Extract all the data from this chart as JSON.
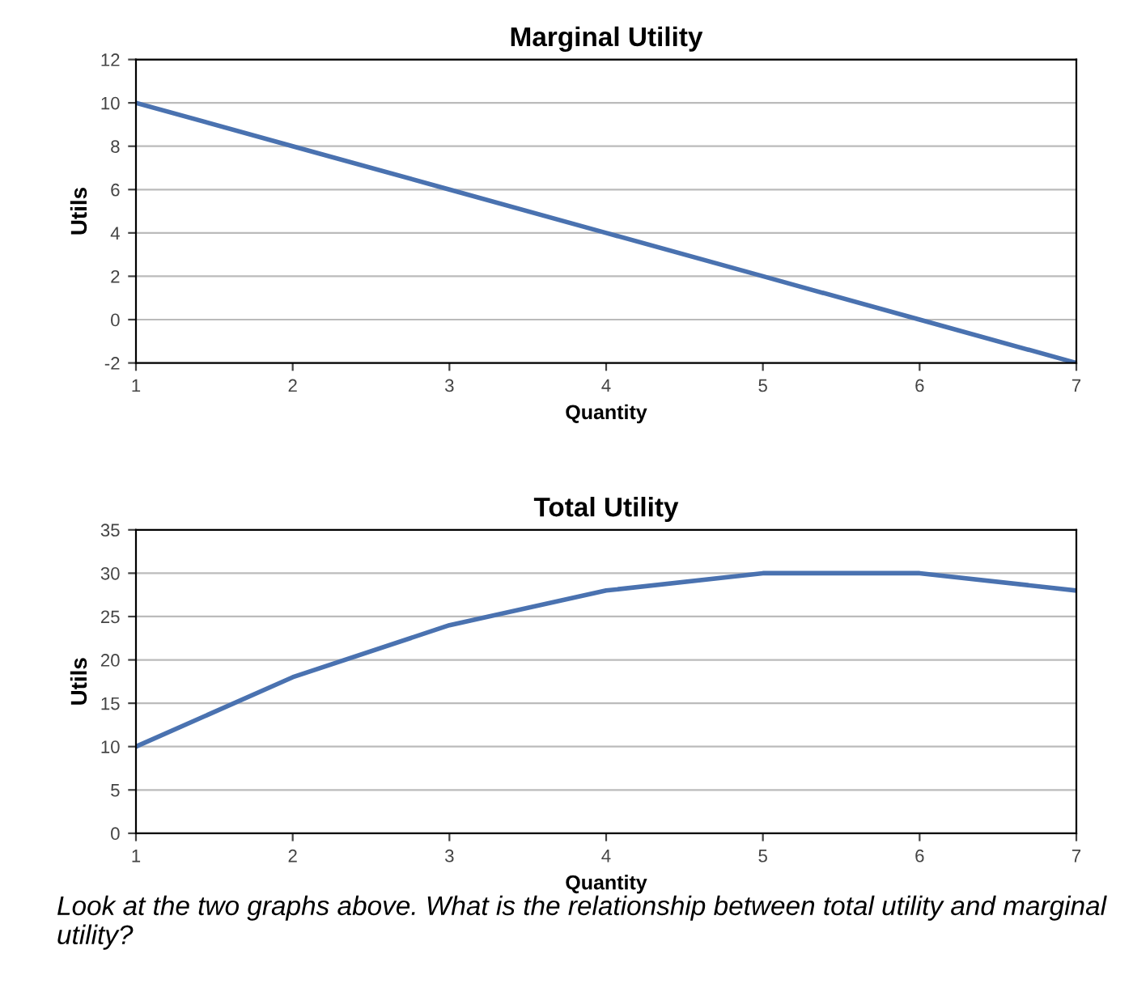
{
  "chart_data": [
    {
      "type": "line",
      "title": "Marginal Utility",
      "xlabel": "Quantity",
      "ylabel": "Utils",
      "x": [
        1,
        2,
        3,
        4,
        5,
        6,
        7
      ],
      "series": [
        {
          "color": "#4a72b0",
          "values": [
            10,
            8,
            6,
            4,
            2,
            0,
            -2
          ]
        }
      ],
      "xlim": [
        1,
        7
      ],
      "xticks": [
        1,
        2,
        3,
        4,
        5,
        6,
        7
      ],
      "ylim": [
        -2,
        12
      ],
      "yticks": [
        -2,
        0,
        2,
        4,
        6,
        8,
        10,
        12
      ],
      "grid": "y"
    },
    {
      "type": "line",
      "title": "Total Utility",
      "xlabel": "Quantity",
      "ylabel": "Utils",
      "x": [
        1,
        2,
        3,
        4,
        5,
        6,
        7
      ],
      "series": [
        {
          "color": "#4a72b0",
          "values": [
            10,
            18,
            24,
            28,
            30,
            30,
            28
          ]
        }
      ],
      "xlim": [
        1,
        7
      ],
      "xticks": [
        1,
        2,
        3,
        4,
        5,
        6,
        7
      ],
      "ylim": [
        0,
        35
      ],
      "yticks": [
        0,
        5,
        10,
        15,
        20,
        25,
        30,
        35
      ],
      "grid": "y",
      "annotations": [
        "Look at the two graphs above. What is the relationship between total utility and marginal utility?"
      ]
    }
  ]
}
